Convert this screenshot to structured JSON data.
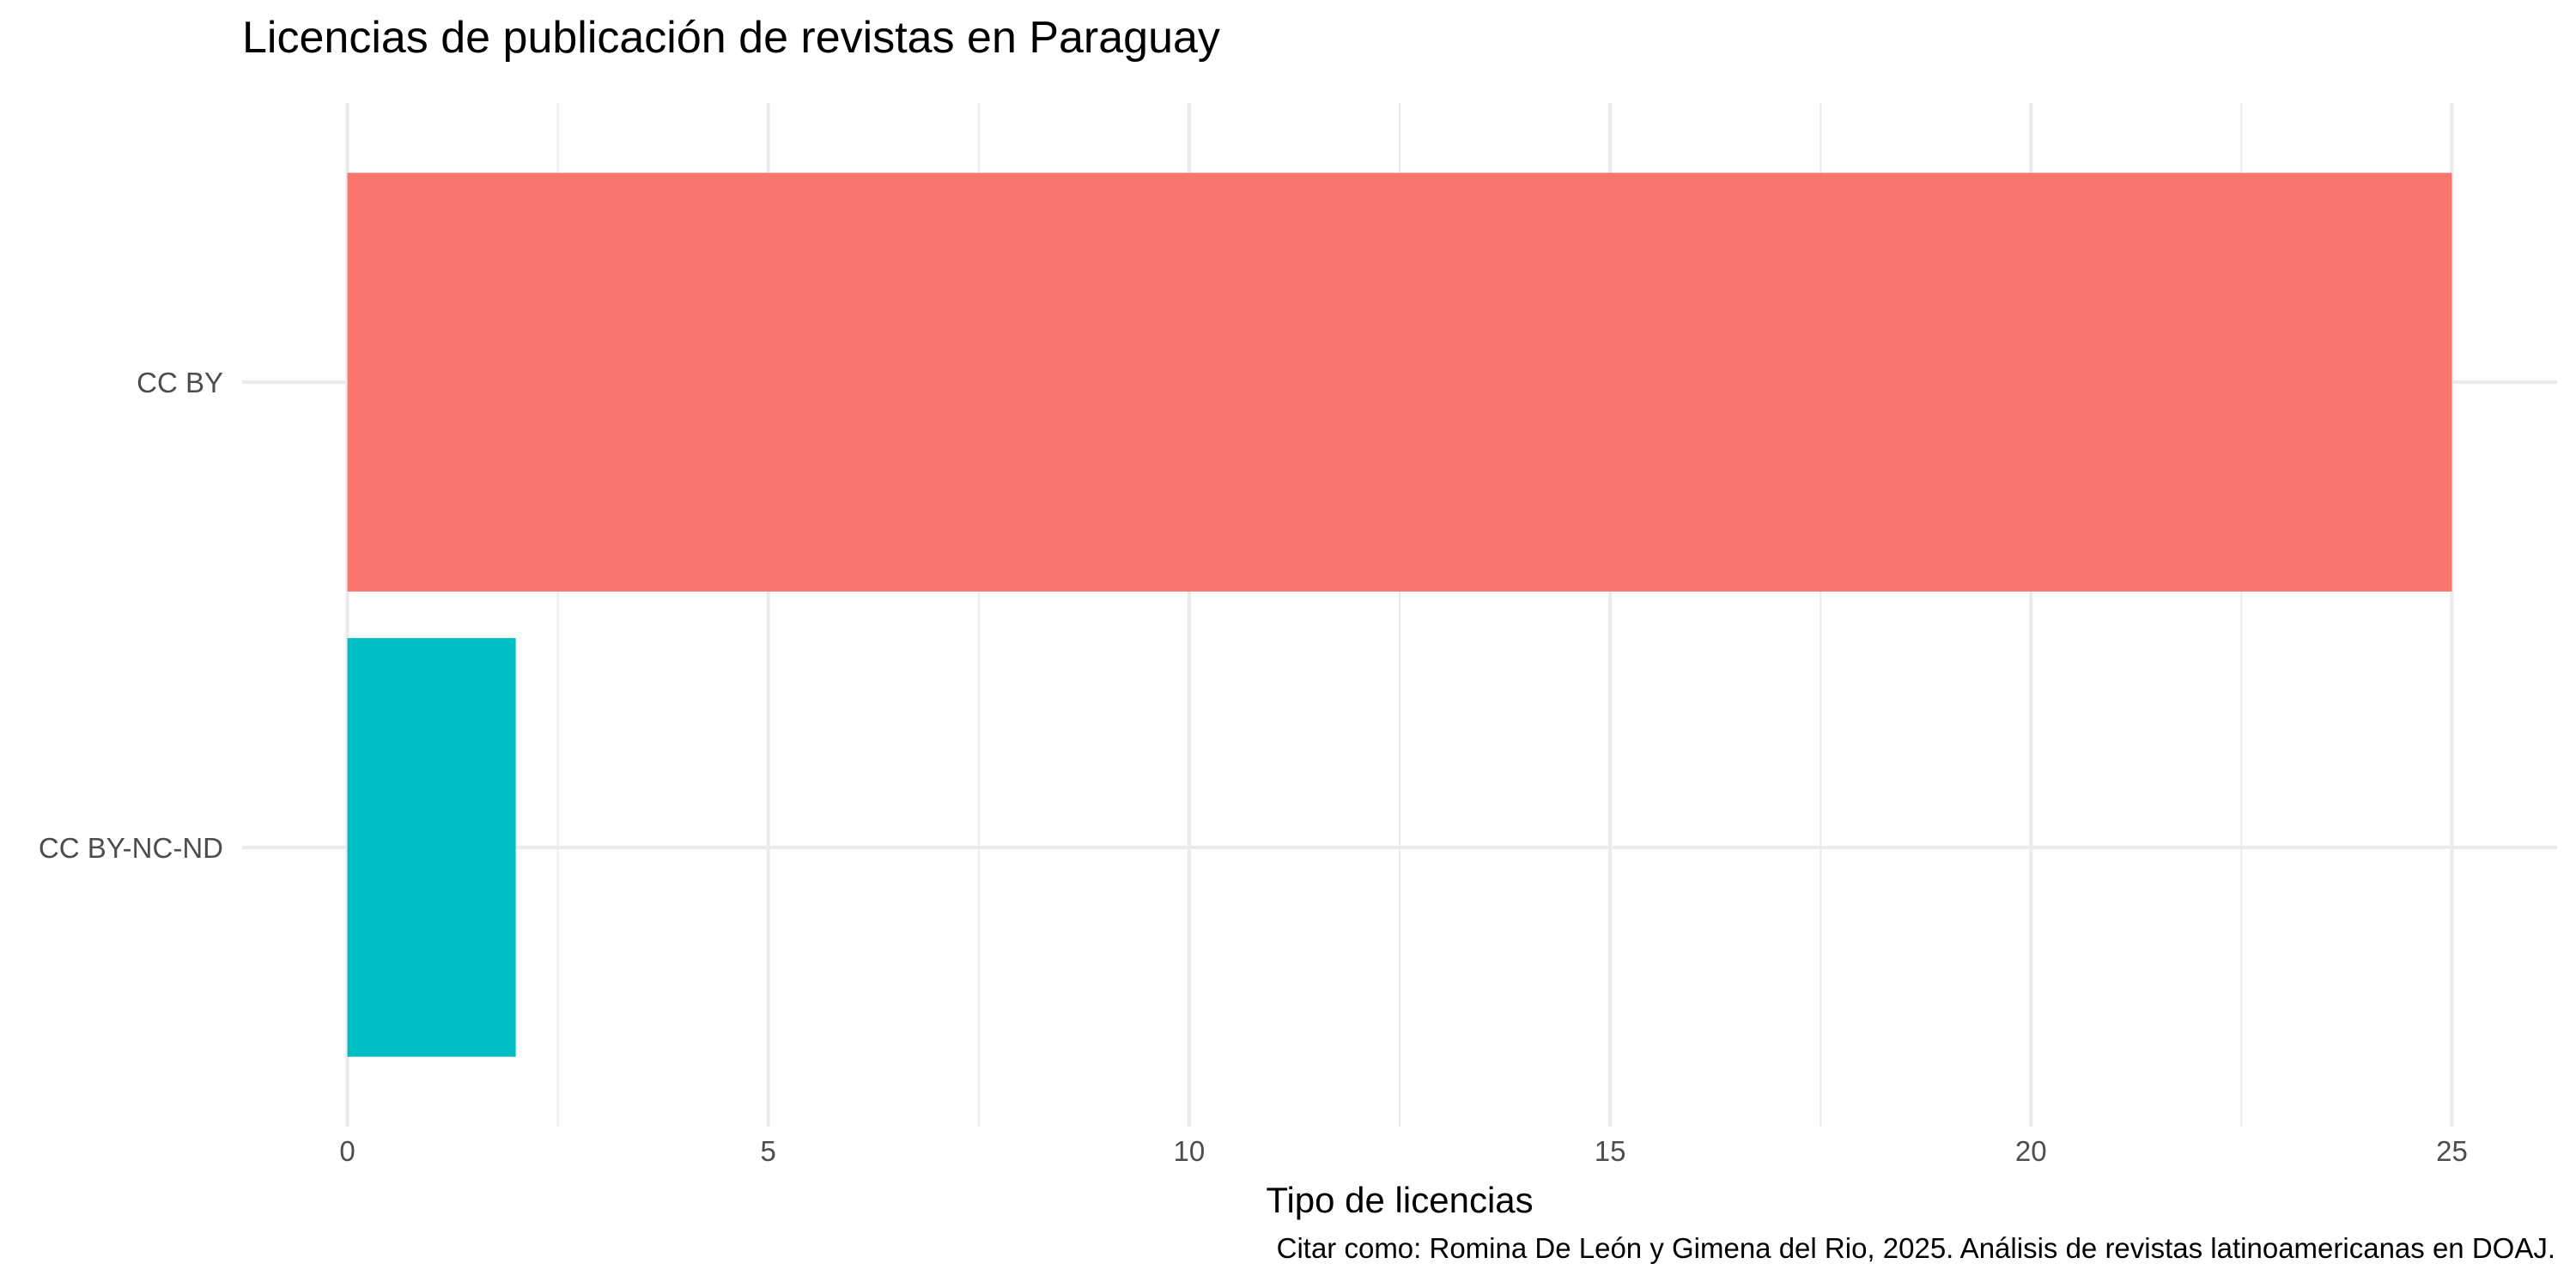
{
  "chart_data": {
    "type": "bar",
    "orientation": "horizontal",
    "title": "Licencias de publicación de revistas en Paraguay",
    "xlabel": "Tipo de licencias",
    "ylabel": "",
    "caption": "Citar como: Romina De León y Gimena del Rio, 2025. Análisis de revistas latinoamericanas en DOAJ.",
    "categories": [
      "CC BY",
      "CC BY-NC-ND"
    ],
    "values": [
      25,
      2
    ],
    "colors": [
      "#F8766D",
      "#00BFC4"
    ],
    "xlim": [
      -1.25,
      26.25
    ],
    "xticks": [
      0,
      5,
      10,
      15,
      20,
      25
    ],
    "x_minor_ticks": [
      2.5,
      7.5,
      12.5,
      17.5,
      22.5
    ],
    "grid": true,
    "legend": "none"
  }
}
